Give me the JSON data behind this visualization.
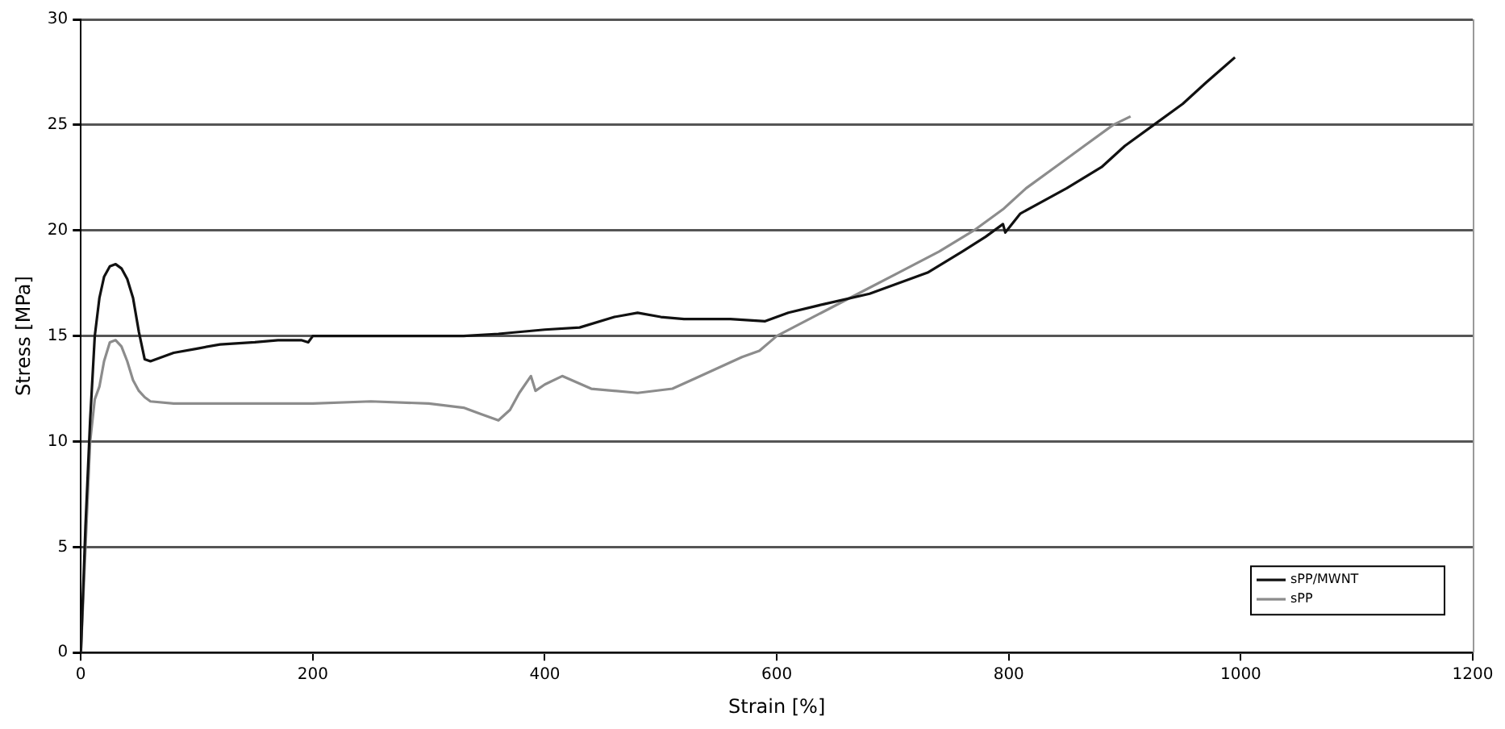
{
  "chart_data": {
    "type": "line",
    "xlabel": "Strain [%]",
    "ylabel": "Stress [MPa]",
    "xlim": [
      0,
      1200
    ],
    "xticks": [
      0,
      200,
      400,
      600,
      800,
      1000,
      1200
    ],
    "ylim": [
      0,
      30
    ],
    "yticks": [
      0,
      5,
      10,
      15,
      20,
      25,
      30
    ],
    "grid": "y",
    "legend": "bottom right",
    "marker": "none",
    "line_style": "solid",
    "series": [
      {
        "name": "sPP/MWNT",
        "color": "#111111",
        "x": [
          0,
          4,
          8,
          12,
          16,
          20,
          25,
          30,
          35,
          40,
          45,
          50,
          55,
          60,
          70,
          80,
          100,
          120,
          150,
          170,
          190,
          196,
          200,
          250,
          300,
          330,
          360,
          400,
          430,
          460,
          480,
          500,
          520,
          560,
          590,
          600,
          610,
          640,
          680,
          730,
          760,
          780,
          795,
          797,
          810,
          850,
          880,
          900,
          925,
          950,
          970,
          995
        ],
        "values": [
          0,
          6,
          11,
          15,
          16.8,
          17.8,
          18.3,
          18.4,
          18.2,
          17.7,
          16.8,
          15.2,
          13.9,
          13.8,
          14,
          14.2,
          14.4,
          14.6,
          14.7,
          14.8,
          14.8,
          14.7,
          15,
          15,
          15,
          15,
          15.1,
          15.3,
          15.4,
          15.9,
          16.1,
          15.9,
          15.8,
          15.8,
          15.7,
          15.9,
          16.1,
          16.5,
          17,
          18,
          19,
          19.7,
          20.3,
          19.9,
          20.8,
          22,
          23,
          24,
          25,
          26,
          27,
          28.2
        ]
      },
      {
        "name": "sPP",
        "color": "#8c8c8c",
        "x": [
          0,
          4,
          8,
          12,
          16,
          20,
          25,
          30,
          35,
          40,
          45,
          50,
          55,
          60,
          80,
          100,
          150,
          200,
          250,
          300,
          330,
          345,
          360,
          370,
          378,
          388,
          392,
          400,
          415,
          440,
          480,
          510,
          530,
          570,
          585,
          600,
          635,
          670,
          705,
          740,
          770,
          795,
          815,
          840,
          865,
          890,
          905
        ],
        "values": [
          0,
          5,
          10,
          12,
          12.6,
          13.8,
          14.7,
          14.8,
          14.5,
          13.8,
          12.9,
          12.4,
          12.1,
          11.9,
          11.8,
          11.8,
          11.8,
          11.8,
          11.9,
          11.8,
          11.6,
          11.3,
          11,
          11.5,
          12.3,
          13.1,
          12.4,
          12.7,
          13.1,
          12.5,
          12.3,
          12.5,
          13,
          14,
          14.3,
          15,
          16,
          17,
          18,
          19,
          20,
          21,
          22,
          23,
          24,
          25,
          25.4
        ]
      }
    ]
  }
}
